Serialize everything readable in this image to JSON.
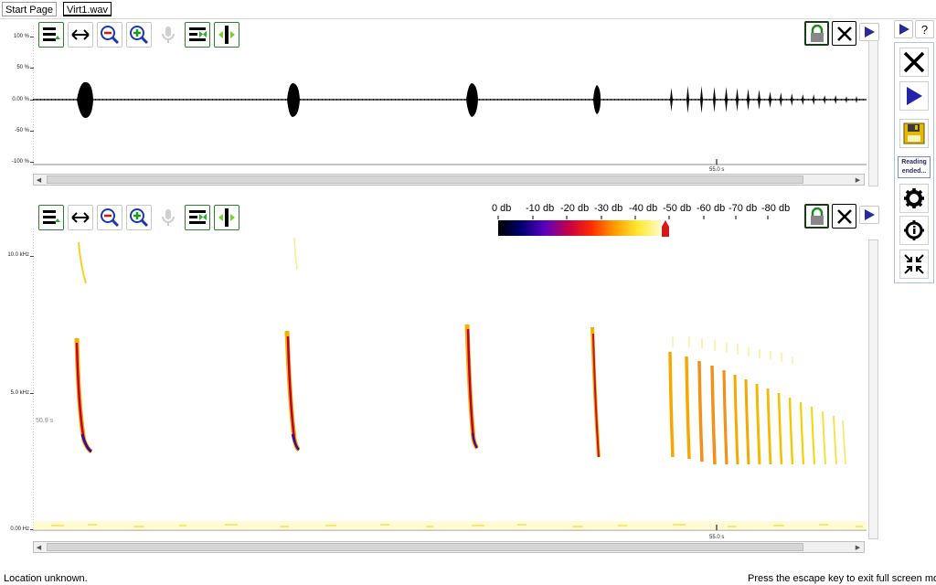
{
  "tabs": [
    {
      "label": "Start Page",
      "active": false
    },
    {
      "label": "Virt1.wav",
      "active": true
    }
  ],
  "icons": {
    "toolbar": [
      "menu-icon",
      "fit-width-icon",
      "zoom-out-icon",
      "zoom-in-icon",
      "microphone-icon",
      "collapse-icon",
      "expand-icon"
    ],
    "lock": "lock-icon",
    "close": "close-icon",
    "play": "play-icon"
  },
  "waveform": {
    "y_labels": [
      "100 %",
      "50 %",
      "0.00 %",
      "-50 %",
      "-100 %"
    ],
    "time_label": "55.0 s"
  },
  "spectrogram": {
    "y_labels": [
      "10.0 kHz",
      "5.0 kHz",
      "0.00 Hz"
    ],
    "cursor_label": "50.9 s",
    "time_label": "55.0 s",
    "db_scale": [
      "0 db",
      "-10 db",
      "-20 db",
      "-30 db",
      "-40 db",
      "-50 db",
      "-60 db",
      "-70 db",
      "-80 db"
    ],
    "colormap": [
      "#000000",
      "#000070",
      "#5a00c0",
      "#c0004a",
      "#ff2a00",
      "#ff9a00",
      "#ffe830",
      "#fffbc8"
    ],
    "threshold_color": "#d81818"
  },
  "side_panel": {
    "top_play_icon": "play-icon",
    "help_label": "?",
    "close_icon": "close-icon",
    "play_icon": "play-icon",
    "save_icon": "save-icon",
    "status_line1": "Reading",
    "status_line2": "ended...",
    "settings_icon": "gear-icon",
    "info_icon": "info-icon",
    "fullscreen_icon": "exit-fullscreen-icon"
  },
  "status": {
    "left": "Location unknown.",
    "right": "Press the escape key to exit full screen mode."
  }
}
